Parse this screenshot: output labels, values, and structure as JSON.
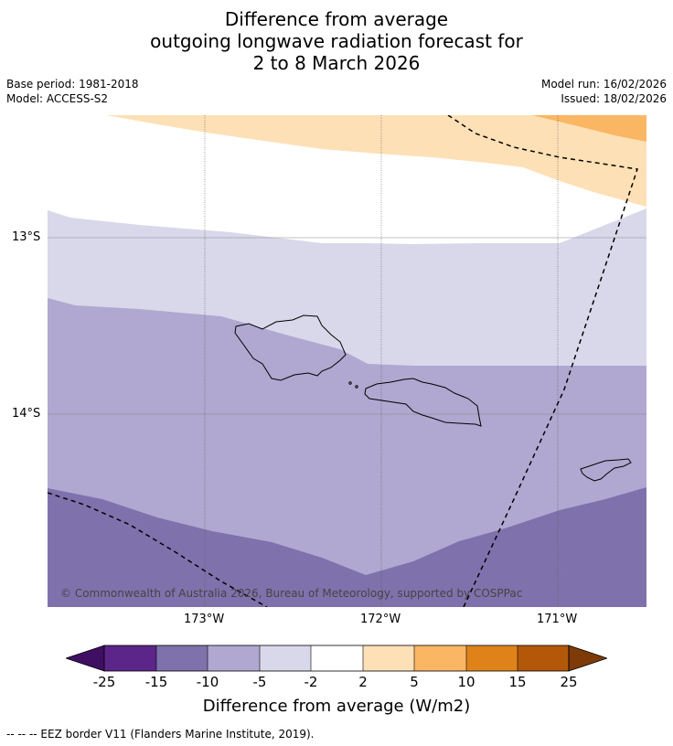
{
  "title": {
    "line1": "Difference from average",
    "line2": "outgoing longwave radiation forecast for",
    "line3": "2 to 8 March 2026"
  },
  "meta": {
    "base_period": "Base period: 1981-2018",
    "model": "Model: ACCESS-S2",
    "model_run": "Model run: 16/02/2026",
    "issued": "Issued: 18/02/2026"
  },
  "map": {
    "lat_labels": [
      "13°S",
      "14°S"
    ],
    "lon_labels": [
      "173°W",
      "172°W",
      "171°W"
    ],
    "copyright": "© Commonwealth of Australia 2026, Bureau of Meteorology, supported by COSPPac",
    "land_color": "none",
    "eez_style": "dashed"
  },
  "colorbar": {
    "ticks": [
      "-25",
      "-15",
      "-10",
      "-5",
      "-2",
      "2",
      "5",
      "10",
      "15",
      "25"
    ],
    "colors": [
      "#3f0f63",
      "#5c2589",
      "#7f72ac",
      "#b0a8d0",
      "#d8d8ea",
      "#ffffff",
      "#fde0b5",
      "#fbb663",
      "#e0821a",
      "#b35709",
      "#7e3b08"
    ],
    "label": "Difference from average (W/m2)"
  },
  "footnote": "--  --  -- EEZ border V11 (Flanders Marine Institute, 2019)."
}
